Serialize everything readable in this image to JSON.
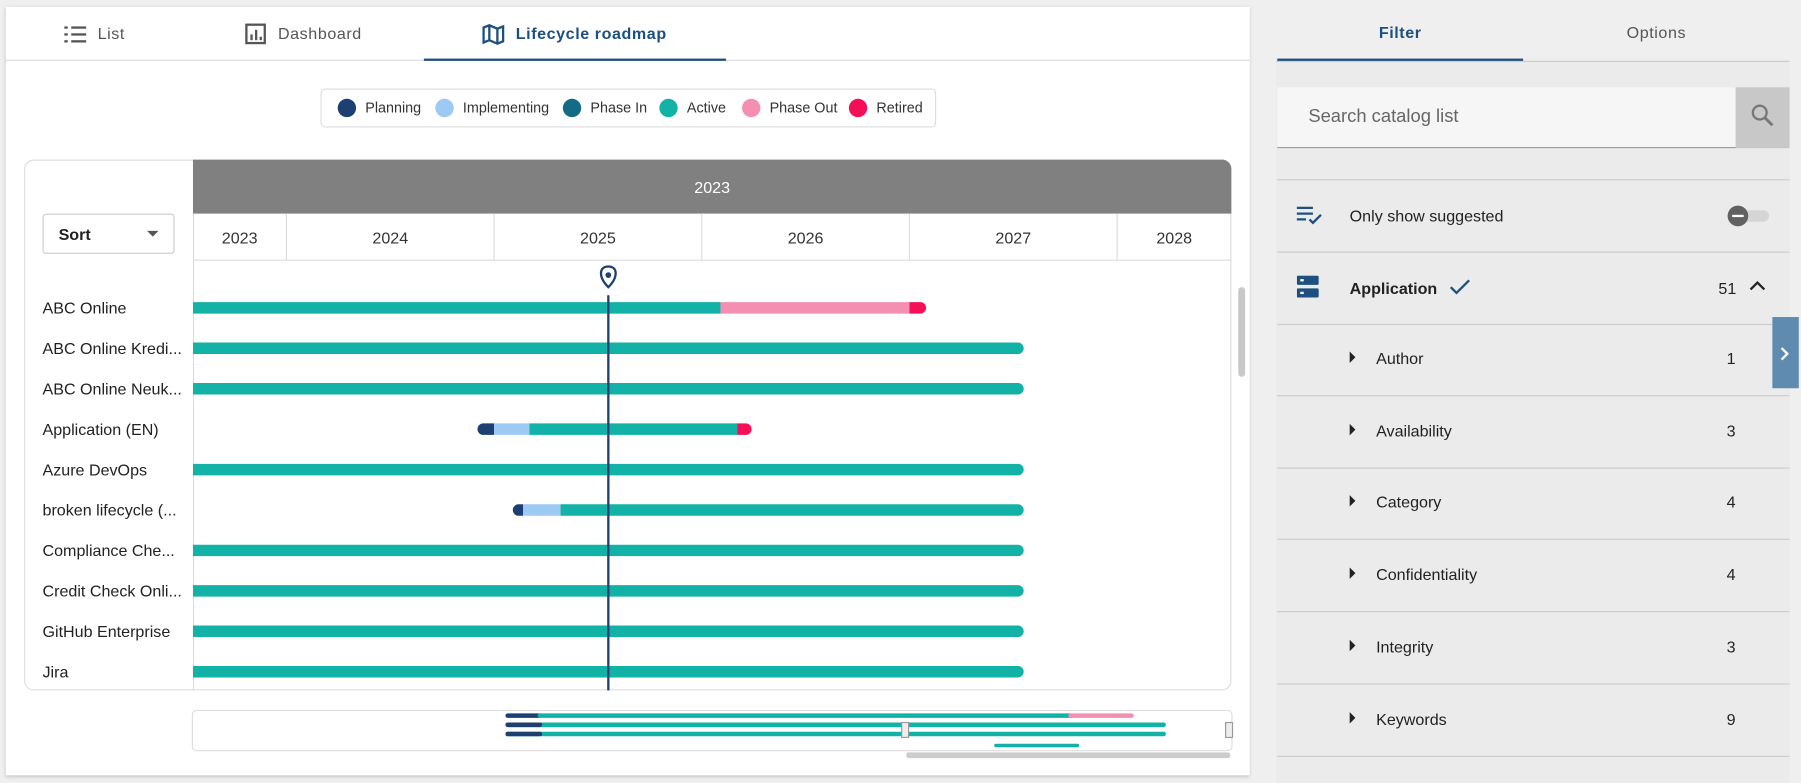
{
  "tabs": [
    "List",
    "Dashboard",
    "Lifecycle roadmap"
  ],
  "legend": [
    {
      "label": "Planning",
      "color": "#1d3f72"
    },
    {
      "label": "Implementing",
      "color": "#9ccaf2"
    },
    {
      "label": "Phase In",
      "color": "#146b86"
    },
    {
      "label": "Active",
      "color": "#13b2a6"
    },
    {
      "label": "Phase Out",
      "color": "#f48fb1"
    },
    {
      "label": "Retired",
      "color": "#f50f57"
    }
  ],
  "timeline": {
    "header": "2023",
    "sort": "Sort",
    "range": [
      2023.55,
      2028.55
    ],
    "years": [
      2023,
      2024,
      2025,
      2026,
      2027,
      2028
    ],
    "today": 2025.55
  },
  "rows": [
    {
      "name": "ABC Online",
      "segments": [
        {
          "phase": 3,
          "start": 2023.55,
          "end": 2026.09
        },
        {
          "phase": 4,
          "start": 2026.09,
          "end": 2027.0
        },
        {
          "phase": 5,
          "start": 2027.0,
          "end": 2027.08
        }
      ]
    },
    {
      "name": "ABC Online Kredi...",
      "segments": [
        {
          "phase": 3,
          "start": 2023.55,
          "end": 2027.55
        }
      ]
    },
    {
      "name": "ABC Online Neuk...",
      "segments": [
        {
          "phase": 3,
          "start": 2023.55,
          "end": 2027.55
        }
      ]
    },
    {
      "name": "Application (EN)",
      "segments": [
        {
          "phase": 0,
          "start": 2024.92,
          "end": 2025.0
        },
        {
          "phase": 1,
          "start": 2025.0,
          "end": 2025.17
        },
        {
          "phase": 3,
          "start": 2025.17,
          "end": 2026.17
        },
        {
          "phase": 5,
          "start": 2026.17,
          "end": 2026.24
        }
      ]
    },
    {
      "name": "Azure DevOps",
      "segments": [
        {
          "phase": 3,
          "start": 2023.55,
          "end": 2027.55
        }
      ]
    },
    {
      "name": "broken lifecycle (...",
      "segments": [
        {
          "phase": 0,
          "start": 2025.09,
          "end": 2025.14
        },
        {
          "phase": 1,
          "start": 2025.14,
          "end": 2025.32
        },
        {
          "phase": 3,
          "start": 2025.32,
          "end": 2027.55
        }
      ]
    },
    {
      "name": "Compliance Che...",
      "segments": [
        {
          "phase": 3,
          "start": 2023.55,
          "end": 2027.55
        }
      ]
    },
    {
      "name": "Credit Check Onli...",
      "segments": [
        {
          "phase": 3,
          "start": 2023.55,
          "end": 2027.55
        }
      ]
    },
    {
      "name": "GitHub Enterprise",
      "segments": [
        {
          "phase": 3,
          "start": 2023.55,
          "end": 2027.55
        }
      ]
    },
    {
      "name": "Jira",
      "segments": [
        {
          "phase": 3,
          "start": 2023.55,
          "end": 2027.55
        }
      ]
    }
  ],
  "panel": {
    "tabs": [
      "Filter",
      "Options"
    ],
    "search_placeholder": "Search catalog list",
    "suggested": "Only show suggested",
    "group": {
      "label": "Application",
      "count": "51"
    },
    "facets": [
      {
        "label": "Author",
        "count": "1"
      },
      {
        "label": "Availability",
        "count": "3"
      },
      {
        "label": "Category",
        "count": "4"
      },
      {
        "label": "Confidentiality",
        "count": "4"
      },
      {
        "label": "Integrity",
        "count": "3"
      },
      {
        "label": "Keywords",
        "count": "9"
      }
    ]
  }
}
